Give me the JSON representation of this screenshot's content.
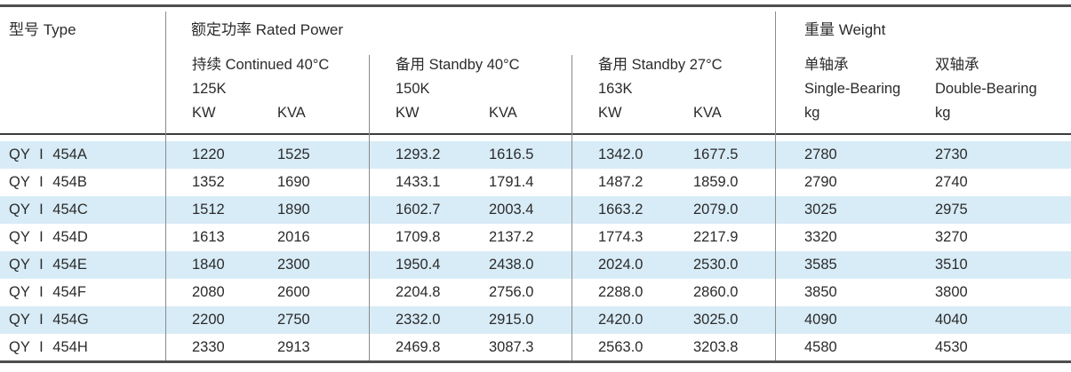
{
  "table": {
    "title_row": {
      "type": "型号 Type",
      "rated_power": "额定功率 Rated Power",
      "weight": "重量 Weight"
    },
    "rated_subgroups": [
      {
        "title": "持续 Continued 40°C",
        "k_class": "125K",
        "kw": "KW",
        "kva": "KVA"
      },
      {
        "title": "备用 Standby 40°C",
        "k_class": "150K",
        "kw": "KW",
        "kva": "KVA"
      },
      {
        "title": "备用 Standby 27°C",
        "k_class": "163K",
        "kw": "KW",
        "kva": "KVA"
      }
    ],
    "weight_columns": [
      {
        "cn": "单轴承",
        "en": "Single-Bearing",
        "unit": "kg"
      },
      {
        "cn": "双轴承",
        "en": "Double-Bearing",
        "unit": "kg"
      }
    ],
    "rows": [
      {
        "model": "QY I 454A",
        "values": [
          "1220",
          "1525",
          "1293.2",
          "1616.5",
          "1342.0",
          "1677.5",
          "2780",
          "2730"
        ]
      },
      {
        "model": "QY I 454B",
        "values": [
          "1352",
          "1690",
          "1433.1",
          "1791.4",
          "1487.2",
          "1859.0",
          "2790",
          "2740"
        ]
      },
      {
        "model": "QY I 454C",
        "values": [
          "1512",
          "1890",
          "1602.7",
          "2003.4",
          "1663.2",
          "2079.0",
          "3025",
          "2975"
        ]
      },
      {
        "model": "QY I 454D",
        "values": [
          "1613",
          "2016",
          "1709.8",
          "2137.2",
          "1774.3",
          "2217.9",
          "3320",
          "3270"
        ]
      },
      {
        "model": "QY I 454E",
        "values": [
          "1840",
          "2300",
          "1950.4",
          "2438.0",
          "2024.0",
          "2530.0",
          "3585",
          "3510"
        ]
      },
      {
        "model": "QY I 454F",
        "values": [
          "2080",
          "2600",
          "2204.8",
          "2756.0",
          "2288.0",
          "2860.0",
          "3850",
          "3800"
        ]
      },
      {
        "model": "QY I 454G",
        "values": [
          "2200",
          "2750",
          "2332.0",
          "2915.0",
          "2420.0",
          "3025.0",
          "4090",
          "4040"
        ]
      },
      {
        "model": "QY I 454H",
        "values": [
          "2330",
          "2913",
          "2469.8",
          "3087.3",
          "2563.0",
          "3203.8",
          "4580",
          "4530"
        ]
      }
    ]
  },
  "colors": {
    "stripe": "#d8ecf7",
    "thick_rule": "#4f4f4f",
    "header_rule": "#3c3c3c",
    "divider": "#8a8a8a",
    "text": "#2b2b2b"
  }
}
